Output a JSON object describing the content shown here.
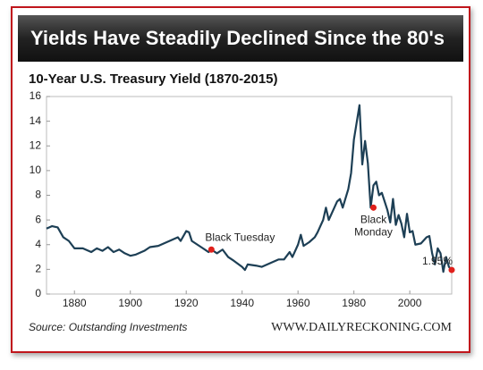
{
  "chart_data": {
    "type": "line",
    "title": "Yields Have Steadily Declined Since the 80's",
    "subtitle": "10-Year U.S. Treasury Yield (1870-2015)",
    "source": "Source: Outstanding Investments",
    "website": "WWW.DAILYRECKONING.COM",
    "x": [
      1870,
      1872,
      1874,
      1876,
      1878,
      1880,
      1883,
      1886,
      1888,
      1890,
      1892,
      1894,
      1896,
      1898,
      1900,
      1902,
      1905,
      1907,
      1910,
      1913,
      1915,
      1917,
      1918,
      1920,
      1921,
      1922,
      1924,
      1926,
      1928,
      1929,
      1931,
      1933,
      1935,
      1937,
      1940,
      1941,
      1942,
      1945,
      1947,
      1950,
      1953,
      1955,
      1957,
      1958,
      1960,
      1961,
      1962,
      1964,
      1966,
      1967,
      1969,
      1970,
      1971,
      1973,
      1974,
      1975,
      1976,
      1978,
      1979,
      1980,
      1981,
      1982,
      1983,
      1984,
      1985,
      1986,
      1987,
      1988,
      1989,
      1990,
      1992,
      1993,
      1994,
      1995,
      1996,
      1997,
      1998,
      1999,
      2000,
      2001,
      2002,
      2004,
      2006,
      2007,
      2008,
      2009,
      2010,
      2011,
      2012,
      2013,
      2014,
      2015
    ],
    "series": [
      {
        "name": "10-Year U.S. Treasury Yield",
        "color": "#1d3f55",
        "values": [
          5.3,
          5.5,
          5.4,
          4.6,
          4.3,
          3.7,
          3.7,
          3.4,
          3.7,
          3.5,
          3.8,
          3.4,
          3.6,
          3.3,
          3.1,
          3.2,
          3.5,
          3.8,
          3.9,
          4.2,
          4.4,
          4.6,
          4.3,
          5.1,
          5.0,
          4.3,
          4.0,
          3.7,
          3.4,
          3.6,
          3.3,
          3.6,
          3.0,
          2.7,
          2.2,
          1.95,
          2.4,
          2.3,
          2.2,
          2.5,
          2.8,
          2.8,
          3.4,
          3.0,
          4.0,
          4.8,
          3.9,
          4.2,
          4.6,
          5.0,
          6.0,
          7.0,
          6.0,
          7.0,
          7.5,
          7.7,
          7.0,
          8.5,
          9.8,
          12.5,
          13.9,
          15.3,
          10.5,
          12.4,
          10.6,
          7.0,
          8.8,
          9.1,
          8.0,
          8.2,
          6.8,
          5.8,
          7.7,
          5.6,
          6.4,
          5.7,
          4.6,
          6.5,
          5.0,
          5.1,
          4.0,
          4.1,
          4.6,
          4.7,
          3.3,
          2.4,
          3.7,
          3.3,
          1.8,
          3.0,
          2.2,
          1.95
        ]
      }
    ],
    "annotations": [
      {
        "lines": [
          "Black Tuesday"
        ],
        "x": 1929,
        "y": 3.6
      },
      {
        "lines": [
          "Black",
          "Monday"
        ],
        "x": 1987,
        "y": 7.0
      },
      {
        "lines": [
          "1.95%"
        ],
        "x": 2015,
        "y": 1.95
      }
    ],
    "marker_color": "#e0201b",
    "xlim": [
      1870,
      2015
    ],
    "xticks": [
      1880,
      1900,
      1920,
      1940,
      1960,
      1980,
      2000
    ],
    "ylim": [
      0,
      16
    ],
    "yticks": [
      0,
      2,
      4,
      6,
      8,
      10,
      12,
      14,
      16
    ],
    "grid": false
  }
}
